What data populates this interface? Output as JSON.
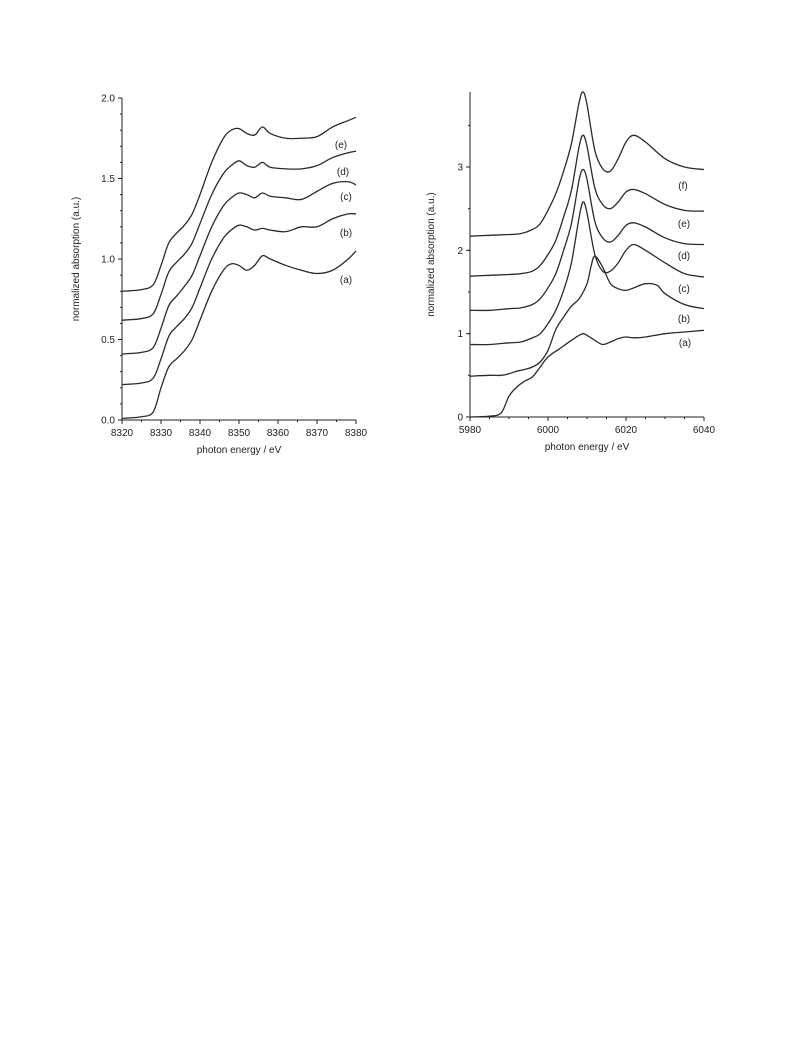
{
  "chart_data": [
    {
      "type": "line",
      "xlabel": "photon energy / eV",
      "ylabel": "normalized absorption (a.u.)",
      "xlim": [
        8320,
        8380
      ],
      "ylim": [
        0,
        2.0
      ],
      "xticks": [
        8320,
        8330,
        8340,
        8350,
        8360,
        8370,
        8380
      ],
      "yticks": [
        0.0,
        0.5,
        1.0,
        1.5,
        2.0
      ],
      "ytick_labels": [
        "0.0",
        "0.5",
        "1.0",
        "1.5",
        "2.0"
      ],
      "series": [
        {
          "name": "(a)",
          "x": [
            8320,
            8325,
            8328,
            8330,
            8332,
            8334,
            8336,
            8338,
            8340,
            8343,
            8346,
            8348,
            8350,
            8352,
            8354,
            8356,
            8358,
            8362,
            8366,
            8370,
            8374,
            8378,
            8380
          ],
          "values": [
            0.01,
            0.02,
            0.05,
            0.2,
            0.33,
            0.38,
            0.43,
            0.5,
            0.62,
            0.8,
            0.93,
            0.97,
            0.96,
            0.93,
            0.96,
            1.02,
            1.0,
            0.96,
            0.93,
            0.91,
            0.93,
            1.0,
            1.05
          ]
        },
        {
          "name": "(b)",
          "x": [
            8320,
            8325,
            8328,
            8330,
            8332,
            8334,
            8336,
            8338,
            8340,
            8343,
            8346,
            8348,
            8350,
            8352,
            8354,
            8356,
            8358,
            8362,
            8366,
            8370,
            8374,
            8378,
            8380
          ],
          "values": [
            0.22,
            0.23,
            0.26,
            0.38,
            0.52,
            0.58,
            0.63,
            0.7,
            0.82,
            1.0,
            1.13,
            1.18,
            1.21,
            1.2,
            1.18,
            1.19,
            1.18,
            1.17,
            1.2,
            1.2,
            1.25,
            1.28,
            1.28
          ]
        },
        {
          "name": "(c)",
          "x": [
            8320,
            8325,
            8328,
            8330,
            8332,
            8334,
            8336,
            8338,
            8340,
            8343,
            8346,
            8348,
            8350,
            8352,
            8354,
            8356,
            8358,
            8362,
            8366,
            8370,
            8374,
            8378,
            8380
          ],
          "values": [
            0.41,
            0.42,
            0.45,
            0.57,
            0.71,
            0.77,
            0.83,
            0.9,
            1.02,
            1.2,
            1.33,
            1.38,
            1.41,
            1.4,
            1.38,
            1.41,
            1.39,
            1.38,
            1.37,
            1.42,
            1.47,
            1.48,
            1.46
          ]
        },
        {
          "name": "(d)",
          "x": [
            8320,
            8325,
            8328,
            8330,
            8332,
            8334,
            8336,
            8338,
            8340,
            8343,
            8346,
            8348,
            8350,
            8352,
            8354,
            8356,
            8358,
            8362,
            8366,
            8370,
            8374,
            8378,
            8380
          ],
          "values": [
            0.62,
            0.63,
            0.66,
            0.78,
            0.92,
            0.98,
            1.03,
            1.1,
            1.22,
            1.4,
            1.53,
            1.58,
            1.61,
            1.58,
            1.57,
            1.6,
            1.57,
            1.56,
            1.56,
            1.58,
            1.63,
            1.66,
            1.67
          ]
        },
        {
          "name": "(e)",
          "x": [
            8320,
            8325,
            8328,
            8330,
            8332,
            8334,
            8336,
            8338,
            8340,
            8343,
            8346,
            8348,
            8350,
            8352,
            8354,
            8356,
            8358,
            8362,
            8366,
            8370,
            8374,
            8378,
            8380
          ],
          "values": [
            0.8,
            0.81,
            0.84,
            0.96,
            1.1,
            1.16,
            1.21,
            1.28,
            1.4,
            1.6,
            1.75,
            1.8,
            1.81,
            1.78,
            1.77,
            1.82,
            1.78,
            1.75,
            1.75,
            1.76,
            1.82,
            1.86,
            1.88
          ]
        }
      ],
      "annotations": [
        "(a)",
        "(b)",
        "(c)",
        "(d)",
        "(e)"
      ]
    },
    {
      "type": "line",
      "xlabel": "photon energy / eV",
      "ylabel": "normalized absorption (a.u.)",
      "xlim": [
        5980,
        6040
      ],
      "ylim": [
        0,
        3.9
      ],
      "xticks": [
        5980,
        6000,
        6020,
        6040
      ],
      "yticks": [
        0,
        1,
        2,
        3
      ],
      "ytick_labels": [
        "0",
        "1",
        "2",
        "3"
      ],
      "series": [
        {
          "name": "(a)",
          "x": [
            5980,
            5985,
            5988,
            5990,
            5992,
            5994,
            5996,
            5998,
            6000,
            6003,
            6006,
            6008,
            6009,
            6010,
            6012,
            6014,
            6016,
            6018,
            6020,
            6022,
            6025,
            6030,
            6035,
            6040
          ],
          "values": [
            0.0,
            0.01,
            0.05,
            0.25,
            0.36,
            0.43,
            0.48,
            0.6,
            0.72,
            0.82,
            0.92,
            0.98,
            1.0,
            0.98,
            0.92,
            0.87,
            0.9,
            0.94,
            0.96,
            0.95,
            0.96,
            1.0,
            1.02,
            1.04
          ]
        },
        {
          "name": "(b)",
          "x": [
            5980,
            5985,
            5988,
            5990,
            5992,
            5994,
            5996,
            5998,
            6000,
            6002,
            6004,
            6006,
            6008,
            6010,
            6011,
            6012,
            6014,
            6016,
            6018,
            6020,
            6022,
            6025,
            6028,
            6030,
            6035,
            6040
          ],
          "values": [
            0.49,
            0.5,
            0.5,
            0.52,
            0.55,
            0.57,
            0.6,
            0.66,
            0.8,
            1.05,
            1.2,
            1.33,
            1.42,
            1.6,
            1.8,
            1.93,
            1.8,
            1.6,
            1.54,
            1.52,
            1.55,
            1.6,
            1.58,
            1.48,
            1.35,
            1.3
          ]
        },
        {
          "name": "(c)",
          "x": [
            5980,
            5985,
            5990,
            5993,
            5996,
            5998,
            6000,
            6002,
            6004,
            6006,
            6008,
            6009,
            6010,
            6012,
            6014,
            6016,
            6018,
            6020,
            6022,
            6025,
            6030,
            6035,
            6040
          ],
          "values": [
            0.87,
            0.87,
            0.89,
            0.9,
            0.95,
            1.0,
            1.12,
            1.28,
            1.52,
            1.85,
            2.4,
            2.58,
            2.45,
            1.95,
            1.75,
            1.75,
            1.85,
            2.0,
            2.07,
            2.0,
            1.85,
            1.72,
            1.68
          ]
        },
        {
          "name": "(d)",
          "x": [
            5980,
            5985,
            5990,
            5993,
            5996,
            5998,
            6000,
            6002,
            6004,
            6006,
            6008,
            6009,
            6010,
            6012,
            6014,
            6016,
            6018,
            6020,
            6022,
            6025,
            6030,
            6035,
            6040
          ],
          "values": [
            1.28,
            1.28,
            1.3,
            1.31,
            1.35,
            1.42,
            1.55,
            1.72,
            2.0,
            2.32,
            2.85,
            2.97,
            2.85,
            2.35,
            2.15,
            2.1,
            2.18,
            2.3,
            2.33,
            2.28,
            2.15,
            2.08,
            2.07
          ]
        },
        {
          "name": "(e)",
          "x": [
            5980,
            5985,
            5990,
            5993,
            5996,
            5998,
            6000,
            6002,
            6004,
            6006,
            6008,
            6009,
            6010,
            6012,
            6014,
            6016,
            6018,
            6020,
            6022,
            6025,
            6030,
            6035,
            6040
          ],
          "values": [
            1.69,
            1.7,
            1.71,
            1.72,
            1.75,
            1.82,
            1.95,
            2.12,
            2.4,
            2.72,
            3.25,
            3.38,
            3.25,
            2.75,
            2.55,
            2.5,
            2.58,
            2.7,
            2.73,
            2.68,
            2.55,
            2.48,
            2.47
          ]
        },
        {
          "name": "(f)",
          "x": [
            5980,
            5985,
            5990,
            5993,
            5996,
            5998,
            6000,
            6002,
            6004,
            6006,
            6008,
            6009,
            6010,
            6012,
            6014,
            6016,
            6018,
            6020,
            6022,
            6025,
            6030,
            6035,
            6040
          ],
          "values": [
            2.17,
            2.18,
            2.19,
            2.2,
            2.25,
            2.32,
            2.48,
            2.68,
            2.95,
            3.28,
            3.78,
            3.9,
            3.75,
            3.2,
            2.98,
            2.95,
            3.1,
            3.3,
            3.38,
            3.3,
            3.1,
            3.0,
            2.97
          ]
        }
      ],
      "annotations": [
        "(a)",
        "(b)",
        "(c)",
        "(d)",
        "(e)",
        "(f)"
      ]
    }
  ]
}
